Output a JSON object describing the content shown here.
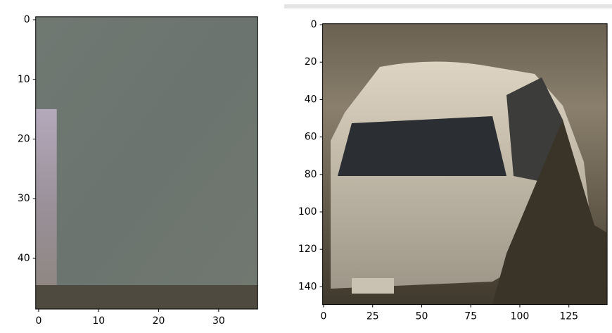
{
  "chart_data": [
    {
      "type": "image",
      "xlim": [
        -0.5,
        36.5
      ],
      "ylim": [
        48.5,
        -0.5
      ],
      "xticks": [
        0,
        10,
        20,
        30
      ],
      "yticks": [
        0,
        10,
        20,
        30,
        40
      ]
    },
    {
      "type": "image",
      "xlim": [
        -0.5,
        144.5
      ],
      "ylim": [
        149.5,
        -0.5
      ],
      "xticks": [
        0,
        25,
        50,
        75,
        100,
        125
      ],
      "yticks": [
        0,
        20,
        40,
        60,
        80,
        100,
        120,
        140
      ]
    }
  ]
}
